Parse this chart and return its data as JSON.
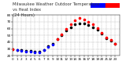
{
  "title_left": "Milwaukee Weather Outdoor Temperature",
  "title_mid": "vs Heat Index",
  "title_right": "(24 Hours)",
  "xlim": [
    0,
    24
  ],
  "ylim": [
    20,
    80
  ],
  "yticks": [
    20,
    30,
    40,
    50,
    60,
    70,
    80
  ],
  "xticks": [
    0,
    1,
    2,
    3,
    4,
    5,
    6,
    7,
    8,
    9,
    10,
    11,
    12,
    13,
    14,
    15,
    16,
    17,
    18,
    19,
    20,
    21,
    22,
    23
  ],
  "xticklabels": [
    "0",
    "1",
    "2",
    "3",
    "4",
    "5",
    "6",
    "7",
    "8",
    "9",
    "10",
    "11",
    "12",
    "13",
    "14",
    "15",
    "16",
    "17",
    "18",
    "19",
    "20",
    "21",
    "22",
    "23"
  ],
  "hours": [
    0,
    1,
    2,
    3,
    4,
    5,
    6,
    7,
    8,
    9,
    10,
    11,
    12,
    13,
    14,
    15,
    16,
    17,
    18,
    19,
    20,
    21,
    22,
    23
  ],
  "temp": [
    30,
    29,
    28,
    27,
    27,
    26,
    26,
    29,
    34,
    38,
    44,
    50,
    57,
    62,
    66,
    68,
    67,
    65,
    62,
    58,
    52,
    46,
    42,
    38
  ],
  "heat_index": [
    30,
    28,
    27,
    26,
    26,
    25,
    25,
    28,
    33,
    37,
    44,
    51,
    59,
    66,
    72,
    75,
    73,
    70,
    66,
    61,
    54,
    47,
    43,
    38
  ],
  "bg_color": "#ffffff",
  "temp_color": "#000000",
  "hi_above_color": "#ff0000",
  "hi_below_color": "#0000ff",
  "grid_color": "#aaaaaa",
  "legend_bar_blue": "#0000ff",
  "legend_bar_red": "#ff0000",
  "dot_size": 2.5,
  "tick_fontsize": 3.0,
  "title_fontsize": 3.8,
  "grid_linestyle": "--",
  "grid_linewidth": 0.3
}
